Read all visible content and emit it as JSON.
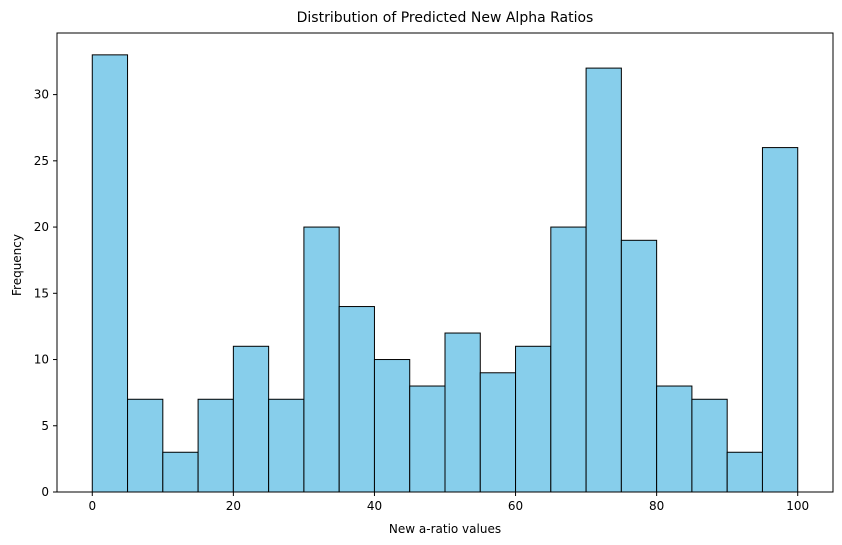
{
  "chart_data": {
    "type": "bar",
    "title": "Distribution of Predicted New Alpha Ratios",
    "xlabel": "New a-ratio values",
    "ylabel": "Frequency",
    "bin_edges": [
      0,
      5,
      10,
      15,
      20,
      25,
      30,
      35,
      40,
      45,
      50,
      55,
      60,
      65,
      70,
      75,
      80,
      85,
      90,
      95,
      100
    ],
    "values": [
      33,
      7,
      3,
      7,
      11,
      7,
      20,
      14,
      10,
      8,
      12,
      9,
      11,
      20,
      32,
      19,
      8,
      7,
      3,
      26
    ],
    "xlim": [
      -5,
      105
    ],
    "ylim": [
      0,
      34.65
    ],
    "xticks": [
      0,
      20,
      40,
      60,
      80,
      100
    ],
    "yticks": [
      0,
      5,
      10,
      15,
      20,
      25,
      30
    ],
    "grid": false,
    "bar_color": "#87CEEB",
    "edge_color": "#000000"
  }
}
